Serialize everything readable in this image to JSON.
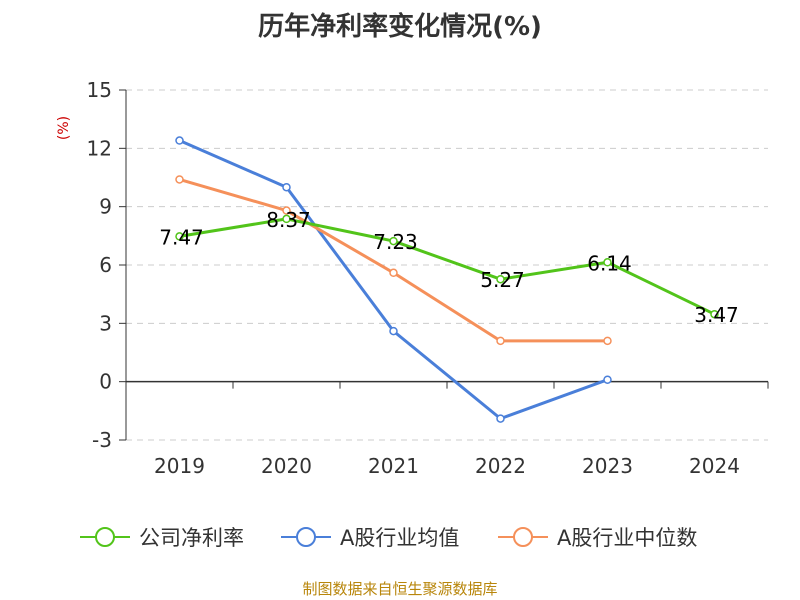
{
  "chart_data": {
    "type": "line",
    "title": "历年净利率变化情况(%)",
    "ylabel": "(%)",
    "xlabel": "",
    "categories": [
      "2019",
      "2020",
      "2021",
      "2022",
      "2023",
      "2024"
    ],
    "ylim": [
      -3,
      15
    ],
    "yticks": [
      15,
      12,
      9,
      6,
      3,
      0,
      -3
    ],
    "grid": true,
    "legend_position": "bottom",
    "series": [
      {
        "name": "公司净利率",
        "color": "#52c41a",
        "values": [
          7.47,
          8.37,
          7.23,
          5.27,
          6.14,
          3.47
        ],
        "labels": [
          "7.47",
          "8.37",
          "7.23",
          "5.27",
          "6.14",
          "3.47"
        ]
      },
      {
        "name": "A股行业均值",
        "color": "#4a7fd9",
        "values": [
          12.4,
          10.0,
          2.6,
          -1.9,
          0.1,
          null
        ]
      },
      {
        "name": "A股行业中位数",
        "color": "#f5905a",
        "values": [
          10.4,
          8.8,
          5.6,
          2.1,
          2.1,
          null
        ]
      }
    ],
    "source": "制图数据来自恒生聚源数据库"
  }
}
